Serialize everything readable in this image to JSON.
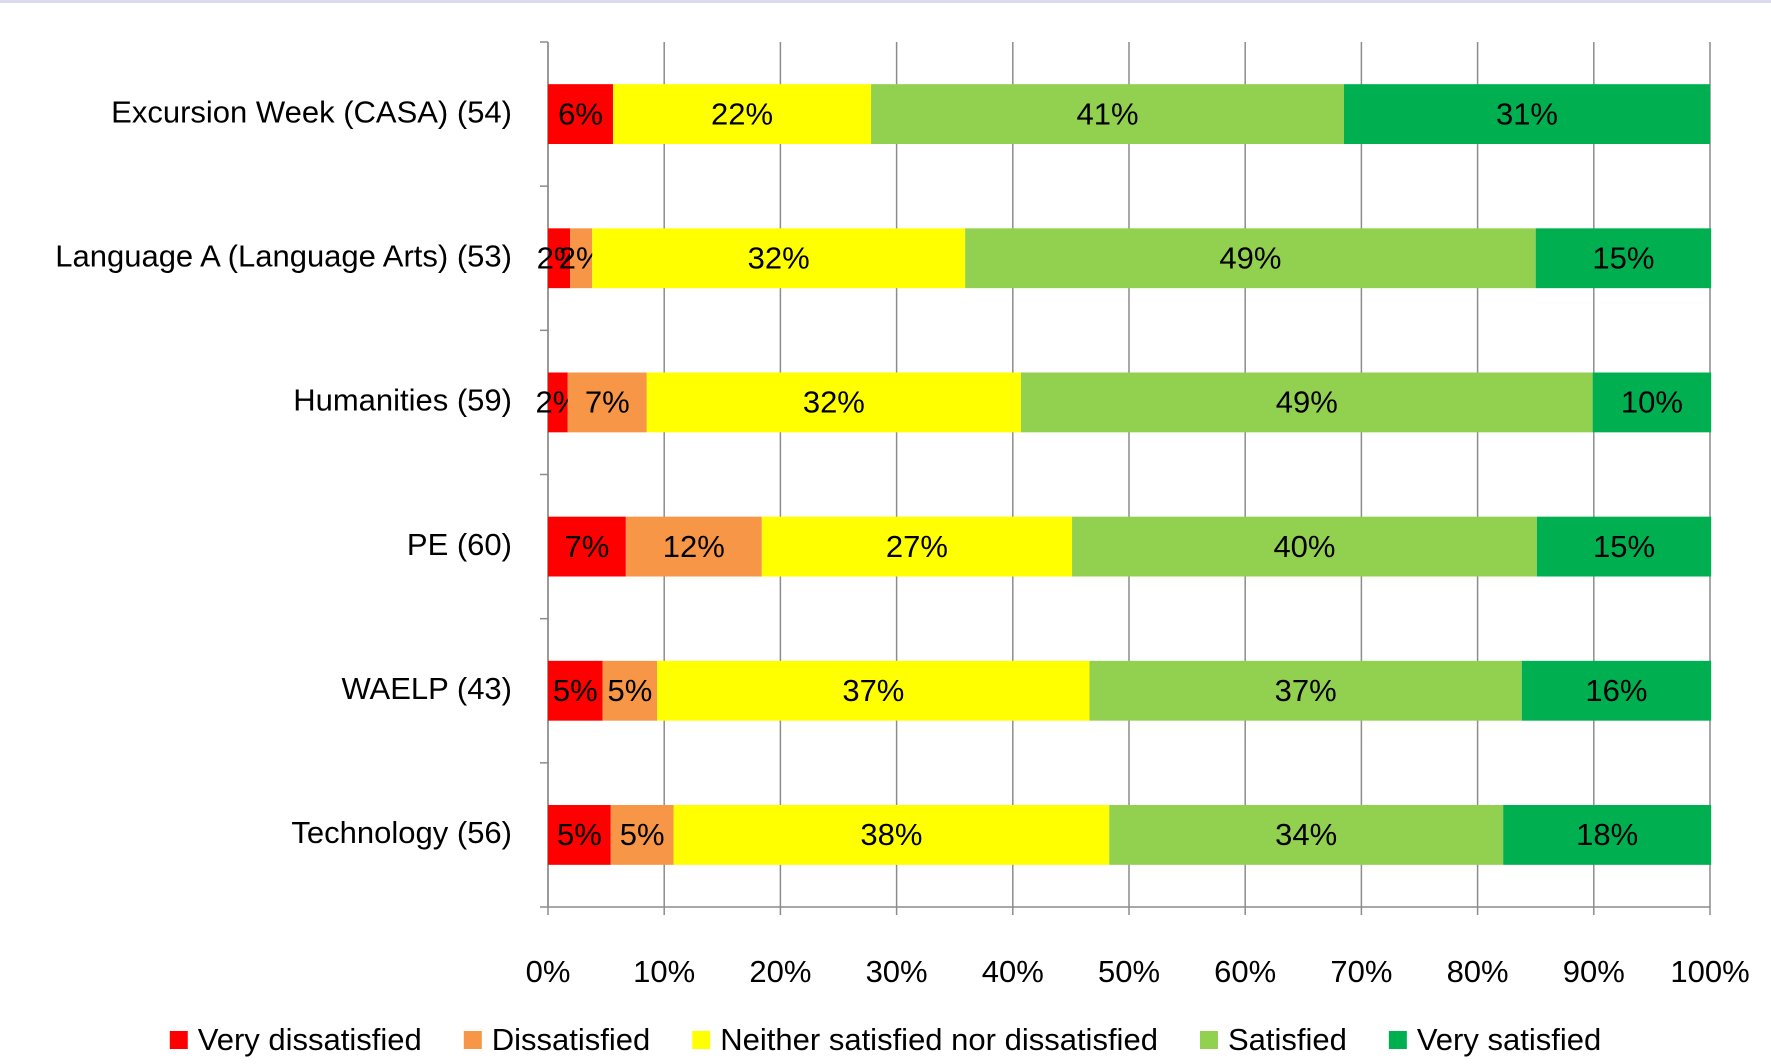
{
  "chart_data": {
    "type": "stacked_hbar_percent",
    "categories": [
      "Excursion Week (CASA) (54)",
      "Language A (Language Arts) (53)",
      "Humanities (59)",
      "PE (60)",
      "WAELP (43)",
      "Technology (56)"
    ],
    "series": [
      {
        "name": "Very dissatisfied",
        "color": "#ff0000",
        "values": [
          5.6,
          1.9,
          1.7,
          6.7,
          4.7,
          5.4
        ],
        "value_labels": [
          "6%",
          "2%",
          "2%",
          "7%",
          "5%",
          "5%"
        ]
      },
      {
        "name": "Dissatisfied",
        "color": "#f79646",
        "values": [
          0,
          1.9,
          6.8,
          11.7,
          4.7,
          5.4
        ],
        "value_labels": [
          null,
          "2%",
          "7%",
          "12%",
          "5%",
          "5%"
        ]
      },
      {
        "name": "Neither satisfied nor dissatisfied",
        "color": "#ffff00",
        "values": [
          22.2,
          32.1,
          32.2,
          26.7,
          37.2,
          37.5
        ],
        "value_labels": [
          "22%",
          "32%",
          "32%",
          "27%",
          "37%",
          "38%"
        ]
      },
      {
        "name": "Satisfied",
        "color": "#92d050",
        "values": [
          40.7,
          49.1,
          49.2,
          40,
          37.2,
          33.9
        ],
        "value_labels": [
          "41%",
          "49%",
          "49%",
          "40%",
          "37%",
          "34%"
        ]
      },
      {
        "name": "Very satisfied",
        "color": "#00b050",
        "values": [
          31.5,
          15.1,
          10.2,
          15,
          16.3,
          17.9
        ],
        "value_labels": [
          "31%",
          "15%",
          "10%",
          "15%",
          "16%",
          "18%"
        ]
      }
    ],
    "xlim": [
      0,
      100
    ],
    "xticks": [
      {
        "value": 0,
        "label": "0%"
      },
      {
        "value": 10,
        "label": "10%"
      },
      {
        "value": 20,
        "label": "20%"
      },
      {
        "value": 30,
        "label": "30%"
      },
      {
        "value": 40,
        "label": "40%"
      },
      {
        "value": 50,
        "label": "50%"
      },
      {
        "value": 60,
        "label": "60%"
      },
      {
        "value": 70,
        "label": "70%"
      },
      {
        "value": 80,
        "label": "80%"
      },
      {
        "value": 90,
        "label": "90%"
      },
      {
        "value": 100,
        "label": "100%"
      }
    ],
    "grid": true,
    "legend": "bottom"
  }
}
